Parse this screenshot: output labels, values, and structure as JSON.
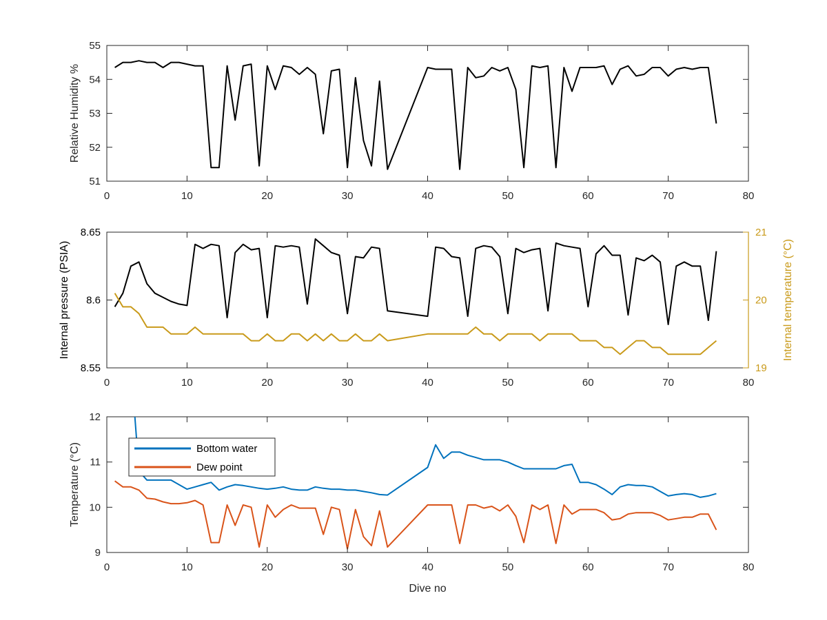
{
  "chart_data": [
    {
      "type": "line",
      "xlabel": "",
      "ylabel": "Relative Humidity %",
      "xlim": [
        0,
        80
      ],
      "ylim": [
        51,
        55
      ],
      "x_ticks": [
        "0",
        "10",
        "20",
        "30",
        "40",
        "50",
        "60",
        "70",
        "80"
      ],
      "y_ticks": [
        "51",
        "52",
        "53",
        "54",
        "55"
      ],
      "grid": false,
      "series": [
        {
          "color": "#000000",
          "x": [
            1,
            2,
            3,
            4,
            5,
            6,
            7,
            8,
            9,
            10,
            11,
            12,
            13,
            14,
            15,
            16,
            17,
            18,
            19,
            20,
            21,
            22,
            23,
            24,
            25,
            26,
            27,
            28,
            29,
            30,
            31,
            32,
            33,
            34,
            35,
            40,
            41,
            42,
            43,
            44,
            45,
            46,
            47,
            48,
            49,
            50,
            51,
            52,
            53,
            54,
            55,
            56,
            57,
            58,
            59,
            60,
            61,
            62,
            63,
            64,
            65,
            66,
            67,
            68,
            69,
            70,
            71,
            72,
            73,
            74,
            75,
            76
          ],
          "y": [
            54.35,
            54.5,
            54.5,
            54.55,
            54.5,
            54.5,
            54.35,
            54.5,
            54.5,
            54.45,
            54.4,
            54.4,
            51.4,
            51.4,
            54.4,
            52.8,
            54.4,
            54.45,
            51.45,
            54.4,
            53.7,
            54.4,
            54.35,
            54.15,
            54.35,
            54.15,
            52.4,
            54.25,
            54.3,
            51.4,
            54.05,
            52.2,
            51.45,
            53.95,
            51.35,
            54.35,
            54.3,
            54.3,
            54.3,
            51.35,
            54.35,
            54.05,
            54.1,
            54.35,
            54.25,
            54.35,
            53.7,
            51.4,
            54.4,
            54.35,
            54.4,
            51.4,
            54.35,
            53.65,
            54.35,
            54.35,
            54.35,
            54.4,
            53.85,
            54.3,
            54.4,
            54.1,
            54.15,
            54.35,
            54.35,
            54.1,
            54.3,
            54.35,
            54.3,
            54.35,
            54.35,
            52.7
          ]
        }
      ]
    },
    {
      "type": "line",
      "xlabel": "",
      "ylabel": "Internal pressure (PSIA)",
      "y2label": "Internal temperature (°C)",
      "xlim": [
        0,
        80
      ],
      "ylim": [
        8.55,
        8.65
      ],
      "y2lim": [
        19,
        21
      ],
      "x_ticks": [
        "0",
        "10",
        "20",
        "30",
        "40",
        "50",
        "60",
        "70",
        "80"
      ],
      "y_ticks": [
        "8.55",
        "8.6",
        "8.65"
      ],
      "y2_ticks": [
        "19",
        "20",
        "21"
      ],
      "grid": false,
      "series": [
        {
          "axis": "left",
          "color": "#000000",
          "x": [
            1,
            2,
            3,
            4,
            5,
            6,
            7,
            8,
            9,
            10,
            11,
            12,
            13,
            14,
            15,
            16,
            17,
            18,
            19,
            20,
            21,
            22,
            23,
            24,
            25,
            26,
            27,
            28,
            29,
            30,
            31,
            32,
            33,
            34,
            35,
            40,
            41,
            42,
            43,
            44,
            45,
            46,
            47,
            48,
            49,
            50,
            51,
            52,
            53,
            54,
            55,
            56,
            57,
            58,
            59,
            60,
            61,
            62,
            63,
            64,
            65,
            66,
            67,
            68,
            69,
            70,
            71,
            72,
            73,
            74,
            75,
            76
          ],
          "y": [
            8.595,
            8.605,
            8.625,
            8.628,
            8.612,
            8.605,
            8.602,
            8.599,
            8.597,
            8.596,
            8.641,
            8.638,
            8.641,
            8.64,
            8.587,
            8.635,
            8.641,
            8.637,
            8.638,
            8.587,
            8.64,
            8.639,
            8.64,
            8.639,
            8.597,
            8.645,
            8.64,
            8.635,
            8.633,
            8.59,
            8.632,
            8.631,
            8.639,
            8.638,
            8.592,
            8.588,
            8.639,
            8.638,
            8.632,
            8.631,
            8.588,
            8.638,
            8.64,
            8.639,
            8.632,
            8.59,
            8.638,
            8.635,
            8.637,
            8.638,
            8.592,
            8.642,
            8.64,
            8.639,
            8.638,
            8.595,
            8.634,
            8.64,
            8.633,
            8.633,
            8.589,
            8.631,
            8.629,
            8.633,
            8.628,
            8.582,
            8.625,
            8.628,
            8.625,
            8.625,
            8.585,
            8.636
          ]
        },
        {
          "axis": "right",
          "color": "#C99A1A",
          "x": [
            1,
            2,
            3,
            4,
            5,
            6,
            7,
            8,
            9,
            10,
            11,
            12,
            13,
            14,
            15,
            16,
            17,
            18,
            19,
            20,
            21,
            22,
            23,
            24,
            25,
            26,
            27,
            28,
            29,
            30,
            31,
            32,
            33,
            34,
            35,
            40,
            41,
            42,
            43,
            44,
            45,
            46,
            47,
            48,
            49,
            50,
            51,
            52,
            53,
            54,
            55,
            56,
            57,
            58,
            59,
            60,
            61,
            62,
            63,
            64,
            65,
            66,
            67,
            68,
            69,
            70,
            71,
            72,
            73,
            74,
            75,
            76
          ],
          "y": [
            20.1,
            19.9,
            19.9,
            19.8,
            19.6,
            19.6,
            19.6,
            19.5,
            19.5,
            19.5,
            19.6,
            19.5,
            19.5,
            19.5,
            19.5,
            19.5,
            19.5,
            19.4,
            19.4,
            19.5,
            19.4,
            19.4,
            19.5,
            19.5,
            19.4,
            19.5,
            19.4,
            19.5,
            19.4,
            19.4,
            19.5,
            19.4,
            19.4,
            19.5,
            19.4,
            19.5,
            19.5,
            19.5,
            19.5,
            19.5,
            19.5,
            19.6,
            19.5,
            19.5,
            19.4,
            19.5,
            19.5,
            19.5,
            19.5,
            19.4,
            19.5,
            19.5,
            19.5,
            19.5,
            19.4,
            19.4,
            19.4,
            19.3,
            19.3,
            19.2,
            19.3,
            19.4,
            19.4,
            19.3,
            19.3,
            19.2,
            19.2,
            19.2,
            19.2,
            19.2,
            19.3,
            19.4
          ]
        }
      ]
    },
    {
      "type": "line",
      "xlabel": "Dive no",
      "ylabel": "Temperature (°C)",
      "xlim": [
        0,
        80
      ],
      "ylim": [
        9,
        12
      ],
      "x_ticks": [
        "0",
        "10",
        "20",
        "30",
        "40",
        "50",
        "60",
        "70",
        "80"
      ],
      "y_ticks": [
        "9",
        "10",
        "11",
        "12"
      ],
      "grid": false,
      "legend": "top-left",
      "series": [
        {
          "name": "Bottom water",
          "color": "#0072BD",
          "x": [
            3.5,
            4,
            5,
            6,
            7,
            8,
            9,
            10,
            11,
            12,
            13,
            14,
            15,
            16,
            17,
            18,
            19,
            20,
            21,
            22,
            23,
            24,
            25,
            26,
            27,
            28,
            29,
            30,
            31,
            32,
            33,
            34,
            35,
            40,
            41,
            42,
            43,
            44,
            45,
            46,
            47,
            48,
            49,
            50,
            51,
            52,
            53,
            54,
            55,
            56,
            57,
            58,
            59,
            60,
            61,
            62,
            63,
            64,
            65,
            66,
            67,
            68,
            69,
            70,
            71,
            72,
            73,
            74,
            75,
            76
          ],
          "y": [
            12.0,
            10.8,
            10.6,
            10.6,
            10.6,
            10.6,
            10.5,
            10.4,
            10.45,
            10.5,
            10.55,
            10.38,
            10.45,
            10.5,
            10.48,
            10.45,
            10.42,
            10.4,
            10.42,
            10.45,
            10.4,
            10.38,
            10.38,
            10.45,
            10.42,
            10.4,
            10.4,
            10.38,
            10.38,
            10.35,
            10.32,
            10.28,
            10.27,
            10.88,
            11.38,
            11.08,
            11.22,
            11.22,
            11.15,
            11.1,
            11.05,
            11.05,
            11.05,
            11.0,
            10.92,
            10.85,
            10.85,
            10.85,
            10.85,
            10.85,
            10.92,
            10.95,
            10.55,
            10.55,
            10.5,
            10.4,
            10.28,
            10.45,
            10.5,
            10.48,
            10.48,
            10.45,
            10.35,
            10.25,
            10.28,
            10.3,
            10.28,
            10.22,
            10.25,
            10.3
          ]
        },
        {
          "name": "Dew point",
          "color": "#D95319",
          "x": [
            1,
            2,
            3,
            4,
            5,
            6,
            7,
            8,
            9,
            10,
            11,
            12,
            13,
            14,
            15,
            16,
            17,
            18,
            19,
            20,
            21,
            22,
            23,
            24,
            25,
            26,
            27,
            28,
            29,
            30,
            31,
            32,
            33,
            34,
            35,
            40,
            41,
            42,
            43,
            44,
            45,
            46,
            47,
            48,
            49,
            50,
            51,
            52,
            53,
            54,
            55,
            56,
            57,
            58,
            59,
            60,
            61,
            62,
            63,
            64,
            65,
            66,
            67,
            68,
            69,
            70,
            71,
            72,
            73,
            74,
            75,
            76
          ],
          "y": [
            10.58,
            10.45,
            10.45,
            10.38,
            10.2,
            10.18,
            10.12,
            10.08,
            10.08,
            10.1,
            10.15,
            10.05,
            9.22,
            9.22,
            10.05,
            9.6,
            10.05,
            10.0,
            9.12,
            10.05,
            9.78,
            9.95,
            10.05,
            9.98,
            9.98,
            9.98,
            9.4,
            10.0,
            9.95,
            9.08,
            9.95,
            9.35,
            9.15,
            9.92,
            9.12,
            10.05,
            10.05,
            10.05,
            10.05,
            9.2,
            10.05,
            10.05,
            9.98,
            10.02,
            9.92,
            10.05,
            9.8,
            9.22,
            10.05,
            9.95,
            10.05,
            9.2,
            10.05,
            9.85,
            9.95,
            9.95,
            9.95,
            9.88,
            9.72,
            9.75,
            9.85,
            9.88,
            9.88,
            9.88,
            9.82,
            9.72,
            9.75,
            9.78,
            9.78,
            9.85,
            9.85,
            9.5
          ]
        }
      ]
    }
  ]
}
